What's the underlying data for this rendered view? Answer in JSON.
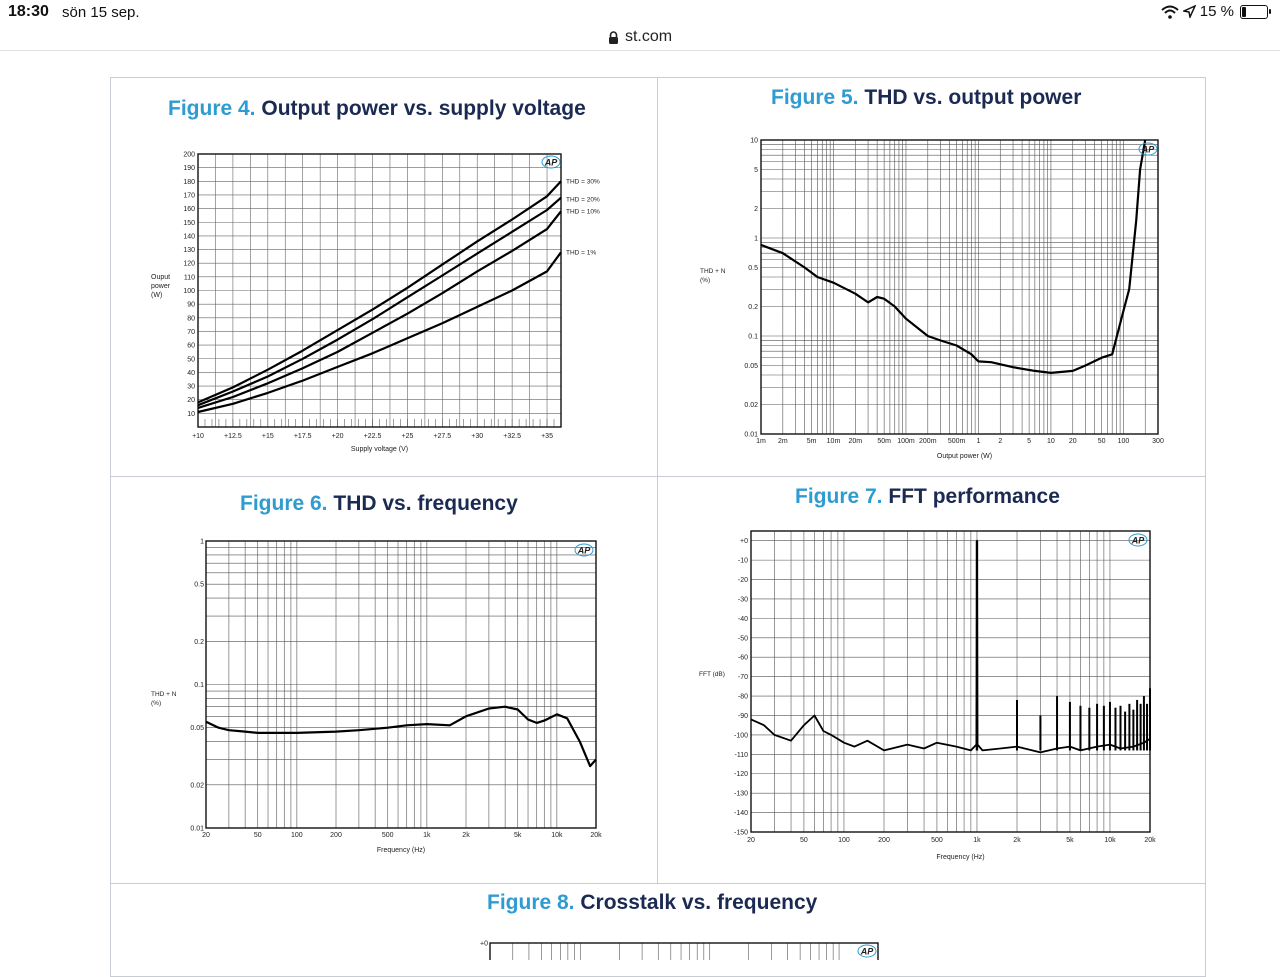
{
  "status": {
    "time": "18:30",
    "date": "sön 15 sep.",
    "battery": "15 %"
  },
  "browser": {
    "url": "st.com"
  },
  "figures": [
    {
      "num": "Figure 4.",
      "title": "Output power vs. supply voltage"
    },
    {
      "num": "Figure 5.",
      "title": "THD vs. output power"
    },
    {
      "num": "Figure 6.",
      "title": "THD vs. frequency"
    },
    {
      "num": "Figure 7.",
      "title": "FFT performance"
    },
    {
      "num": "Figure 8.",
      "title": "Crosstalk vs. frequency"
    }
  ],
  "logo_text": "AP",
  "chart_data": [
    {
      "type": "line",
      "title": "Output power vs. supply voltage",
      "xlabel": "Supply voltage (V)",
      "ylabel": "Ouput power (W)",
      "xlim": [
        10,
        36
      ],
      "ylim": [
        0,
        200
      ],
      "xticks": [
        "+10",
        "+12.5",
        "+15",
        "+17.5",
        "+20",
        "+22.5",
        "+25",
        "+27.5",
        "+30",
        "+32.5",
        "+35"
      ],
      "yticks": [
        "10",
        "20",
        "30",
        "40",
        "50",
        "60",
        "70",
        "80",
        "90",
        "100",
        "110",
        "120",
        "130",
        "140",
        "150",
        "160",
        "170",
        "180",
        "190",
        "200"
      ],
      "x": [
        10,
        12.5,
        15,
        17.5,
        20,
        22.5,
        25,
        27.5,
        30,
        32.5,
        35,
        36
      ],
      "series": [
        {
          "name": "THD = 30%",
          "values": [
            18,
            29,
            42,
            56,
            71,
            86,
            102,
            119,
            136,
            152,
            169,
            180
          ]
        },
        {
          "name": "THD = 20%",
          "values": [
            16,
            26,
            37,
            50,
            64,
            79,
            95,
            111,
            127,
            143,
            159,
            168
          ]
        },
        {
          "name": "THD = 10%",
          "values": [
            14,
            22,
            32,
            43,
            55,
            69,
            83,
            98,
            114,
            129,
            145,
            158
          ]
        },
        {
          "name": "THD = 1%",
          "values": [
            11,
            17,
            25,
            34,
            44,
            54,
            65,
            76,
            88,
            100,
            114,
            128
          ]
        }
      ]
    },
    {
      "type": "line",
      "title": "THD vs. output power",
      "xlabel": "Output power (W)",
      "ylabel": "THD + N (%)",
      "xscale": "log",
      "yscale": "log",
      "xlim": [
        0.001,
        300
      ],
      "ylim": [
        0.01,
        10
      ],
      "xticks": [
        "1m",
        "2m",
        "5m",
        "10m",
        "20m",
        "50m",
        "100m",
        "200m",
        "500m",
        "1",
        "2",
        "5",
        "10",
        "20",
        "50",
        "100",
        "300"
      ],
      "yticks": [
        "0.01",
        "0.02",
        "0.05",
        "0.1",
        "0.2",
        "0.5",
        "1",
        "2",
        "5",
        "10"
      ],
      "series": [
        {
          "name": "THD",
          "x": [
            0.001,
            0.002,
            0.004,
            0.006,
            0.01,
            0.02,
            0.03,
            0.04,
            0.05,
            0.07,
            0.1,
            0.2,
            0.3,
            0.5,
            0.8,
            1,
            1.5,
            3,
            6,
            10,
            20,
            30,
            50,
            70,
            100,
            120,
            150,
            170,
            200
          ],
          "values": [
            0.85,
            0.7,
            0.5,
            0.4,
            0.35,
            0.27,
            0.22,
            0.25,
            0.24,
            0.2,
            0.15,
            0.1,
            0.09,
            0.08,
            0.065,
            0.055,
            0.054,
            0.048,
            0.044,
            0.042,
            0.044,
            0.05,
            0.06,
            0.065,
            0.18,
            0.3,
            1.5,
            5,
            12
          ]
        }
      ]
    },
    {
      "type": "line",
      "title": "THD vs. frequency",
      "xlabel": "Frequency (Hz)",
      "ylabel": "THD + N (%)",
      "xscale": "log",
      "yscale": "log",
      "xlim": [
        20,
        20000
      ],
      "ylim": [
        0.01,
        1
      ],
      "xticks": [
        "20",
        "50",
        "100",
        "200",
        "500",
        "1k",
        "2k",
        "5k",
        "10k",
        "20k"
      ],
      "yticks": [
        "0.01",
        "0.02",
        "0.05",
        "0.1",
        "0.2",
        "0.5",
        "1"
      ],
      "series": [
        {
          "name": "THD",
          "x": [
            20,
            25,
            30,
            40,
            50,
            70,
            100,
            200,
            300,
            500,
            700,
            1000,
            1500,
            2000,
            3000,
            4000,
            5000,
            6000,
            7000,
            8000,
            10000,
            12000,
            15000,
            18000,
            20000
          ],
          "values": [
            0.055,
            0.05,
            0.048,
            0.047,
            0.046,
            0.046,
            0.046,
            0.047,
            0.048,
            0.05,
            0.052,
            0.053,
            0.052,
            0.06,
            0.068,
            0.07,
            0.067,
            0.057,
            0.054,
            0.056,
            0.062,
            0.058,
            0.04,
            0.027,
            0.03
          ]
        }
      ]
    },
    {
      "type": "line",
      "title": "FFT performance",
      "xlabel": "Frequency (Hz)",
      "ylabel": "FFT (dB)",
      "xscale": "log",
      "xlim": [
        20,
        20000
      ],
      "ylim": [
        -150,
        5
      ],
      "xticks": [
        "20",
        "50",
        "100",
        "200",
        "500",
        "1k",
        "2k",
        "5k",
        "10k",
        "20k"
      ],
      "yticks": [
        "+0",
        "-10",
        "-20",
        "-30",
        "-40",
        "-50",
        "-60",
        "-70",
        "-80",
        "-90",
        "-100",
        "-110",
        "-120",
        "-130",
        "-140",
        "-150"
      ],
      "series": [
        {
          "name": "FFT",
          "x": [
            20,
            25,
            30,
            40,
            50,
            60,
            70,
            80,
            100,
            120,
            150,
            200,
            300,
            400,
            500,
            700,
            900,
            990,
            1000,
            1010,
            1100,
            1500,
            2000,
            3000,
            4000,
            5000,
            6000,
            8000,
            10000,
            12000,
            15000,
            18000,
            20000
          ],
          "values": [
            -92,
            -95,
            -100,
            -103,
            -95,
            -90,
            -98,
            -100,
            -104,
            -106,
            -103,
            -108,
            -105,
            -107,
            -104,
            -106,
            -108,
            -105,
            0,
            -105,
            -108,
            -107,
            -106,
            -109,
            -107,
            -106,
            -108,
            -106,
            -105,
            -107,
            -106,
            -104,
            -102
          ]
        },
        {
          "name": "Harmonics",
          "x": [
            2000,
            3000,
            4000,
            5000,
            6000,
            7000,
            8000,
            9000,
            10000,
            11000,
            12000,
            13000,
            14000,
            15000,
            16000,
            17000,
            18000,
            19000,
            20000
          ],
          "values": [
            -82,
            -90,
            -80,
            -83,
            -85,
            -86,
            -84,
            -85,
            -83,
            -86,
            -85,
            -88,
            -84,
            -87,
            -82,
            -84,
            -80,
            -84,
            -76
          ]
        }
      ]
    },
    {
      "type": "line",
      "title": "Crosstalk vs. frequency",
      "ylim": [
        -100,
        0
      ],
      "yticks": [
        "+0"
      ],
      "series": []
    }
  ]
}
